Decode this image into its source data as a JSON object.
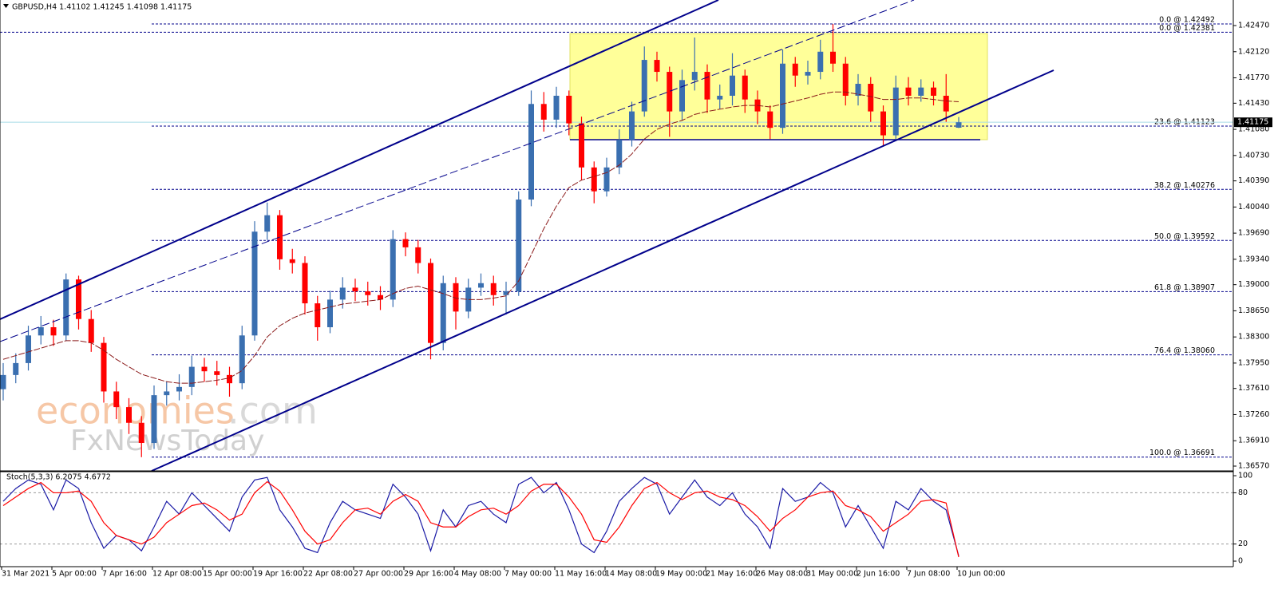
{
  "header": {
    "title": "GBPUSD,H4  1.41102 1.41245 1.41098 1.41175"
  },
  "watermark": {
    "name": "economies",
    "suffix": ".com",
    "sub": "FxNewsToday"
  },
  "chart_data": [
    {
      "type": "candlestick",
      "categories": [
        "31 Mar 2021",
        null,
        null,
        null,
        "5 Apr 00:00",
        null,
        null,
        null,
        "7 Apr 16:00",
        null,
        null,
        null,
        "12 Apr 08:00",
        null,
        null,
        null,
        "15 Apr 00:00",
        null,
        null,
        null,
        "19 Apr 16:00",
        null,
        null,
        null,
        "22 Apr 08:00",
        null,
        null,
        null,
        "27 Apr 00:00",
        null,
        null,
        null,
        "29 Apr 16:00",
        null,
        null,
        null,
        "4 May 08:00",
        null,
        null,
        null,
        "7 May 00:00",
        null,
        null,
        null,
        "11 May 16:00",
        null,
        null,
        null,
        "14 May 08:00",
        null,
        null,
        null,
        "19 May 00:00",
        null,
        null,
        null,
        "21 May 16:00",
        null,
        null,
        null,
        "26 May 08:00",
        null,
        null,
        null,
        "31 May 00:00",
        null,
        null,
        null,
        "2 Jun 16:00",
        null,
        null,
        null,
        "7 Jun 08:00",
        null,
        null,
        null,
        "10 Jun 00:00"
      ],
      "open": [
        1.376,
        1.3779,
        1.3795,
        1.3832,
        1.3843,
        1.3832,
        1.3907,
        1.3854,
        1.3822,
        1.3757,
        1.3736,
        1.3715,
        1.3688,
        1.3752,
        1.3757,
        1.3763,
        1.379,
        1.3784,
        1.3779,
        1.3768,
        1.3832,
        1.3971,
        1.3993,
        1.3934,
        1.3929,
        1.3875,
        1.3843,
        1.388,
        1.3896,
        1.3891,
        1.3886,
        1.388,
        1.3961,
        1.395,
        1.3929,
        1.3822,
        1.3902,
        1.3864,
        1.3896,
        1.3902,
        1.3886,
        1.3891,
        1.4014,
        1.4142,
        1.4121,
        1.4153,
        1.4116,
        1.4057,
        1.4025,
        1.4057,
        1.4094,
        1.4132,
        1.4201,
        1.4185,
        1.4132,
        1.4174,
        1.4185,
        1.4148,
        1.4153,
        1.418,
        1.4148,
        1.4132,
        1.411,
        1.4196,
        1.418,
        1.4185,
        1.4212,
        1.4196,
        1.4153,
        1.4169,
        1.4132,
        1.41,
        1.4164,
        1.4153,
        1.4164,
        1.4153,
        1.41102
      ],
      "high": [
        1.3795,
        1.3808,
        1.3845,
        1.3858,
        1.3853,
        1.3915,
        1.3912,
        1.3866,
        1.383,
        1.377,
        1.3748,
        1.3724,
        1.3765,
        1.377,
        1.378,
        1.3805,
        1.3802,
        1.3798,
        1.379,
        1.3845,
        1.3985,
        1.401,
        1.4,
        1.3948,
        1.3938,
        1.3885,
        1.3892,
        1.391,
        1.3908,
        1.3904,
        1.3898,
        1.3973,
        1.397,
        1.396,
        1.3935,
        1.3912,
        1.391,
        1.3908,
        1.3915,
        1.3912,
        1.3904,
        1.4025,
        1.416,
        1.4158,
        1.4165,
        1.416,
        1.4125,
        1.4065,
        1.407,
        1.4108,
        1.4145,
        1.4219,
        1.4212,
        1.4192,
        1.4188,
        1.4231,
        1.4195,
        1.4168,
        1.421,
        1.4188,
        1.416,
        1.414,
        1.4215,
        1.4205,
        1.42,
        1.4228,
        1.4249,
        1.4205,
        1.4182,
        1.4178,
        1.414,
        1.418,
        1.4178,
        1.4175,
        1.4172,
        1.4182,
        1.41245
      ],
      "low": [
        1.3745,
        1.3768,
        1.3785,
        1.382,
        1.3818,
        1.3825,
        1.384,
        1.381,
        1.3742,
        1.372,
        1.37,
        1.3669,
        1.368,
        1.3738,
        1.3745,
        1.3752,
        1.377,
        1.3765,
        1.375,
        1.376,
        1.3825,
        1.396,
        1.392,
        1.3915,
        1.386,
        1.3825,
        1.3835,
        1.3868,
        1.3878,
        1.3872,
        1.3866,
        1.387,
        1.3938,
        1.3915,
        1.38,
        1.3812,
        1.384,
        1.3855,
        1.3885,
        1.3872,
        1.386,
        1.3885,
        1.4005,
        1.4105,
        1.411,
        1.41,
        1.404,
        1.4009,
        1.4018,
        1.4048,
        1.4085,
        1.4125,
        1.4172,
        1.4098,
        1.412,
        1.416,
        1.413,
        1.4135,
        1.414,
        1.413,
        1.4115,
        1.4095,
        1.4102,
        1.4165,
        1.4168,
        1.4175,
        1.4185,
        1.414,
        1.414,
        1.4118,
        1.4085,
        1.4095,
        1.414,
        1.4145,
        1.414,
        1.4118,
        1.41098
      ],
      "close": [
        1.3779,
        1.3795,
        1.3832,
        1.3843,
        1.3832,
        1.3907,
        1.3854,
        1.3822,
        1.3757,
        1.3736,
        1.3715,
        1.3688,
        1.3752,
        1.3757,
        1.3763,
        1.379,
        1.3784,
        1.3779,
        1.3768,
        1.3832,
        1.3971,
        1.3993,
        1.3934,
        1.3929,
        1.3875,
        1.3843,
        1.388,
        1.3896,
        1.3891,
        1.3886,
        1.388,
        1.3961,
        1.395,
        1.3929,
        1.3822,
        1.3902,
        1.3864,
        1.3896,
        1.3902,
        1.3886,
        1.3891,
        1.4014,
        1.4142,
        1.4121,
        1.4153,
        1.4116,
        1.4057,
        1.4025,
        1.4057,
        1.4094,
        1.4132,
        1.4201,
        1.4185,
        1.4132,
        1.4174,
        1.4185,
        1.4148,
        1.4153,
        1.418,
        1.4148,
        1.4132,
        1.411,
        1.4196,
        1.418,
        1.4185,
        1.4212,
        1.4196,
        1.4153,
        1.4169,
        1.4132,
        1.41,
        1.4164,
        1.4153,
        1.4164,
        1.4153,
        1.4132,
        1.41175
      ],
      "colors": {
        "up": "#3a6fb0",
        "down": "#ff0000"
      },
      "series": [
        {
          "color": "#8b1a1a",
          "values": [
            1.38,
            1.3805,
            1.381,
            1.3815,
            1.382,
            1.3825,
            1.3825,
            1.3822,
            1.3812,
            1.38,
            1.379,
            1.378,
            1.3775,
            1.377,
            1.3768,
            1.3768,
            1.377,
            1.3772,
            1.3775,
            1.3785,
            1.3805,
            1.383,
            1.3845,
            1.3855,
            1.3862,
            1.3866,
            1.387,
            1.3874,
            1.3876,
            1.3878,
            1.388,
            1.3888,
            1.3895,
            1.3898,
            1.3893,
            1.3888,
            1.3882,
            1.388,
            1.388,
            1.3882,
            1.3885,
            1.3905,
            1.394,
            1.3975,
            1.4005,
            1.403,
            1.404,
            1.4045,
            1.405,
            1.406,
            1.4075,
            1.4095,
            1.4108,
            1.4115,
            1.412,
            1.4128,
            1.4132,
            1.4135,
            1.4138,
            1.414,
            1.414,
            1.4138,
            1.4142,
            1.4146,
            1.415,
            1.4155,
            1.4158,
            1.4158,
            1.4155,
            1.4152,
            1.4148,
            1.4148,
            1.415,
            1.415,
            1.4148,
            1.4146,
            1.4145
          ]
        }
      ],
      "ylim": [
        1.36506,
        1.42791
      ],
      "yticks": [
        {
          "value": 1.4247,
          "label": "1.42470"
        },
        {
          "value": 1.4212,
          "label": "1.42120"
        },
        {
          "value": 1.4177,
          "label": "1.41770"
        },
        {
          "value": 1.4143,
          "label": "1.41430"
        },
        {
          "value": 1.4108,
          "label": "1.41080"
        },
        {
          "value": 1.4073,
          "label": "1.40730"
        },
        {
          "value": 1.4039,
          "label": "1.40390"
        },
        {
          "value": 1.4004,
          "label": "1.40040"
        },
        {
          "value": 1.3969,
          "label": "1.39690"
        },
        {
          "value": 1.3934,
          "label": "1.39340"
        },
        {
          "value": 1.39,
          "label": "1.39000"
        },
        {
          "value": 1.3865,
          "label": "1.38650"
        },
        {
          "value": 1.383,
          "label": "1.38300"
        },
        {
          "value": 1.3795,
          "label": "1.37950"
        },
        {
          "value": 1.3761,
          "label": "1.37610"
        },
        {
          "value": 1.3726,
          "label": "1.37260"
        },
        {
          "value": 1.3691,
          "label": "1.36910"
        },
        {
          "value": 1.3657,
          "label": "1.36570"
        }
      ],
      "levels": [
        {
          "value": 1.42492,
          "label": "0.0 @ 1.42492"
        },
        {
          "value": 1.42381,
          "label": "0.0 @ 1.42381"
        },
        {
          "value": 1.41123,
          "label": "23.6 @ 1.41123"
        },
        {
          "value": 1.40276,
          "label": "38.2 @ 1.40276"
        },
        {
          "value": 1.39592,
          "label": "50.0 @ 1.39592"
        },
        {
          "value": 1.38907,
          "label": "61.8 @ 1.38907"
        },
        {
          "value": 1.3806,
          "label": "76.4 @ 1.38060"
        },
        {
          "value": 1.36691,
          "label": "100.0 @ 1.36691"
        }
      ],
      "last_price": {
        "value": 1.41175,
        "label": "1.41175"
      }
    },
    {
      "type": "stochastic",
      "title": "Stoch(5,3,3) 6.2075 4.6772",
      "series": [
        {
          "color": "#1a1aa6",
          "values": [
            70,
            85,
            95,
            90,
            60,
            95,
            85,
            45,
            15,
            30,
            25,
            12,
            40,
            70,
            55,
            80,
            65,
            50,
            35,
            75,
            95,
            98,
            60,
            40,
            15,
            10,
            45,
            70,
            60,
            55,
            50,
            90,
            75,
            55,
            12,
            60,
            40,
            65,
            70,
            55,
            45,
            90,
            98,
            80,
            92,
            60,
            20,
            10,
            35,
            70,
            85,
            98,
            90,
            55,
            75,
            95,
            75,
            65,
            80,
            55,
            40,
            15,
            85,
            70,
            75,
            92,
            80,
            40,
            65,
            40,
            15,
            70,
            60,
            85,
            70,
            60,
            6.2075
          ]
        },
        {
          "color": "#ff0000",
          "values": [
            65,
            75,
            85,
            92,
            80,
            80,
            82,
            70,
            45,
            30,
            25,
            20,
            28,
            45,
            55,
            65,
            68,
            60,
            48,
            55,
            80,
            93,
            82,
            60,
            35,
            20,
            25,
            45,
            60,
            62,
            55,
            70,
            78,
            70,
            45,
            40,
            40,
            52,
            60,
            62,
            55,
            65,
            82,
            90,
            90,
            75,
            55,
            25,
            22,
            40,
            65,
            85,
            92,
            80,
            72,
            80,
            82,
            75,
            72,
            65,
            52,
            35,
            50,
            60,
            75,
            80,
            82,
            65,
            60,
            52,
            35,
            45,
            55,
            70,
            72,
            68,
            4.6772
          ]
        }
      ],
      "ylim": [
        -6.5,
        104.7
      ],
      "yticks": [
        0,
        20,
        80,
        100
      ],
      "levels": [
        20,
        80
      ]
    }
  ]
}
